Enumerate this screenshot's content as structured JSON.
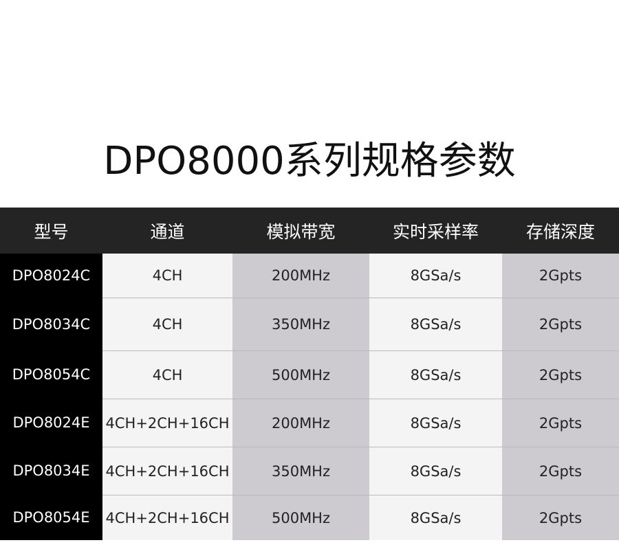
{
  "title": "DPO8000系列规格参数",
  "table": {
    "header": [
      "型号",
      "通道",
      "模拟带宽",
      "实时采样率",
      "存储深度"
    ],
    "rows": [
      [
        "DPO8024C",
        "4CH",
        "200MHz",
        "8GSa/s",
        "2Gpts"
      ],
      [
        "DPO8034C",
        "4CH",
        "350MHz",
        "8GSa/s",
        "2Gpts"
      ],
      [
        "DPO8054C",
        "4CH",
        "500MHz",
        "8GSa/s",
        "2Gpts"
      ],
      [
        "DPO8024E",
        "4CH+2CH+16CH",
        "200MHz",
        "8GSa/s",
        "2Gpts"
      ],
      [
        "DPO8034E",
        "4CH+2CH+16CH",
        "350MHz",
        "8GSa/s",
        "2Gpts"
      ],
      [
        "DPO8054E",
        "4CH+2CH+16CH",
        "500MHz",
        "8GSa/s",
        "2Gpts"
      ]
    ]
  }
}
